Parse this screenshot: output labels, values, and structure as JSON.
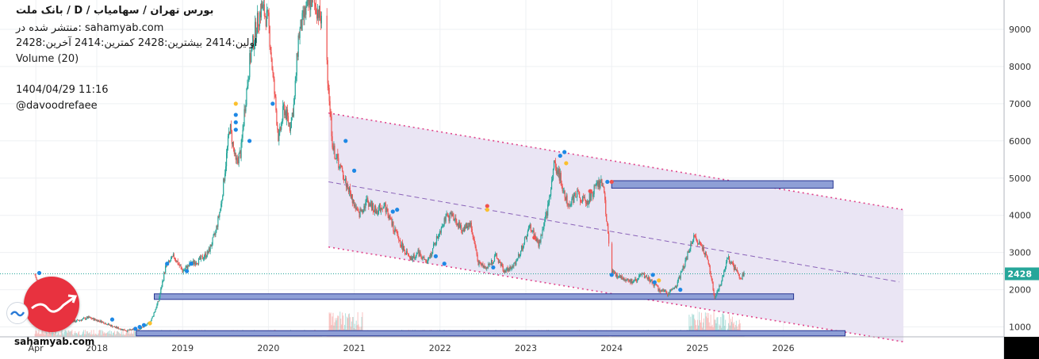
{
  "header": {
    "title": "بانک ملت / D / بورس تهران / سهامیاب",
    "published": "منتشر شده در: sahamyab.com",
    "ohlc": "اولین:2414  بیشترین:2428  کمترین:2414  آخرین:2428",
    "volume": "Volume (20)",
    "timestamp": "1404/04/29 11:16",
    "author": "@davoodrefaee"
  },
  "footer": {
    "site": "sahamyab.com"
  },
  "colors": {
    "channel_fill": "#e9e4f3",
    "channel_line": "#e0438a",
    "midline": "#8a63b8",
    "zone_fill": "#8e9fd6",
    "zone_border": "#283593",
    "price_line": "#26a69a",
    "badge": "#26a69a",
    "candle_up": "#26a69a",
    "candle_down": "#ef5350",
    "logo": "#e8323f"
  },
  "chart_data": {
    "type": "line",
    "title": "بانک ملت / D / بورس تهران / سهامیاب",
    "x_ticks": [
      "Apr",
      "2018",
      "2019",
      "2020",
      "2021",
      "2022",
      "2023",
      "2024",
      "2025",
      "2026"
    ],
    "y_ticks": [
      1000,
      2000,
      3000,
      4000,
      5000,
      6000,
      7000,
      8000,
      9000
    ],
    "ylim": [
      0,
      9200
    ],
    "last_price": 2428,
    "last_price_label": "2428",
    "series": [
      {
        "x": [
          2017.28,
          2017.45,
          2017.6,
          2017.75,
          2017.9,
          2018.05,
          2018.2,
          2018.35,
          2018.5,
          2018.62,
          2018.72,
          2018.8,
          2018.9,
          2019.0,
          2019.1,
          2019.2,
          2019.3,
          2019.38,
          2019.45,
          2019.55,
          2019.62,
          2019.68,
          2019.72,
          2019.78,
          2019.85,
          2019.92,
          2020.0,
          2020.05,
          2020.12,
          2020.18,
          2020.25,
          2020.3,
          2020.35,
          2020.42,
          2020.5,
          2020.58,
          2020.66,
          2020.75,
          2020.85,
          2020.95,
          2021.05,
          2021.15,
          2021.25,
          2021.35,
          2021.45,
          2021.55,
          2021.65,
          2021.75,
          2021.85,
          2021.95,
          2022.05,
          2022.15,
          2022.25,
          2022.35,
          2022.45,
          2022.55,
          2022.65,
          2022.75,
          2022.85,
          2022.95,
          2023.05,
          2023.15,
          2023.25,
          2023.33,
          2023.4,
          2023.45,
          2023.5,
          2023.6,
          2023.7,
          2023.8,
          2023.9,
          2024.0,
          2024.05,
          2024.15,
          2024.25,
          2024.35,
          2024.45,
          2024.55,
          2024.65,
          2024.75,
          2024.85,
          2024.95,
          2025.05,
          2025.12,
          2025.2,
          2025.28,
          2025.35,
          2025.4,
          2025.45,
          2025.5,
          2025.55
        ],
        "y": [
          2400,
          1100,
          1200,
          1150,
          1250,
          1150,
          1000,
          900,
          950,
          1100,
          1700,
          2600,
          2900,
          2500,
          2700,
          2800,
          3000,
          3500,
          4300,
          6400,
          5400,
          5700,
          6800,
          8100,
          9000,
          9600,
          9200,
          7800,
          6000,
          6900,
          6400,
          7000,
          8800,
          9400,
          9800,
          9500,
          8800,
          5800,
          5200,
          4600,
          4000,
          4400,
          4100,
          4300,
          3700,
          3200,
          2800,
          3000,
          2700,
          3300,
          3900,
          4000,
          3600,
          3800,
          2700,
          2600,
          2900,
          2500,
          2600,
          3100,
          3700,
          3200,
          4100,
          5400,
          5000,
          4600,
          4300,
          4600,
          4300,
          4700,
          4900,
          2500,
          2400,
          2300,
          2200,
          2400,
          2250,
          2000,
          1900,
          2100,
          2700,
          3400,
          3200,
          2800,
          1800,
          2200,
          2900,
          2700,
          2500,
          2300,
          2428
        ]
      }
    ]
  }
}
